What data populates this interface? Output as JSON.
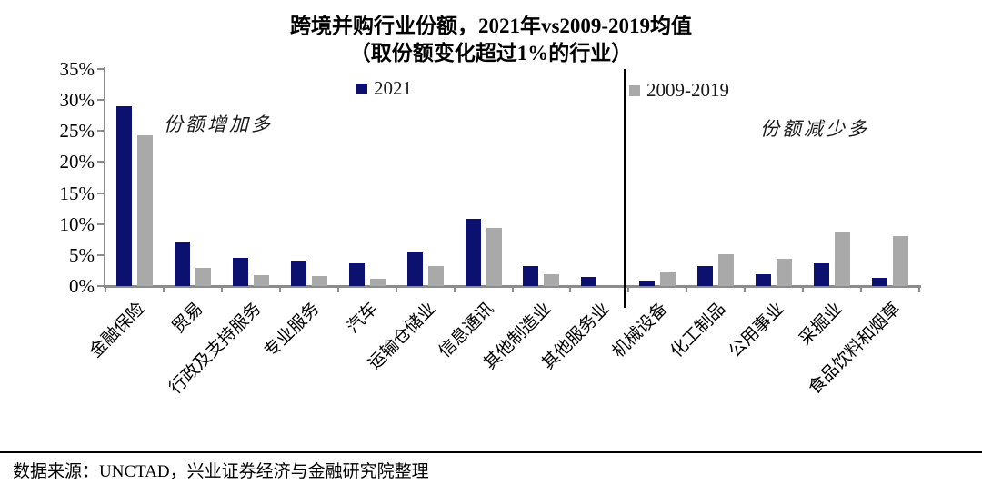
{
  "title": {
    "line1": "跨境并购行业份额，2021年vs2009-2019均值",
    "line2": "（取份额变化超过1%的行业）"
  },
  "legend": {
    "s2021": {
      "label": "2021",
      "color": "#0c1170"
    },
    "s2009": {
      "label": "2009-2019",
      "color": "#a9a9a9"
    }
  },
  "annotations": {
    "left": "份额增加多",
    "right": "份额减少多"
  },
  "source": "数据来源：UNCTAD，兴业证券经济与金融研究院整理",
  "chart_data": {
    "type": "bar",
    "title": "跨境并购行业份额，2021年vs2009-2019均值（取份额变化超过1%的行业）",
    "categories": [
      "金融保险",
      "贸易",
      "行政及支持服务",
      "专业服务",
      "汽车",
      "运输仓储业",
      "信息通讯",
      "其他制造业",
      "其他服务业",
      "机械设备",
      "化工制品",
      "公用事业",
      "采掘业",
      "食品饮料和烟草"
    ],
    "series": [
      {
        "name": "2021",
        "color": "#0c1170",
        "values": [
          29.0,
          7.0,
          4.5,
          4.1,
          3.7,
          5.4,
          10.9,
          3.2,
          1.4,
          0.9,
          3.2,
          1.9,
          3.6,
          1.3
        ]
      },
      {
        "name": "2009-2019",
        "color": "#a9a9a9",
        "values": [
          24.3,
          2.9,
          1.7,
          1.6,
          1.2,
          3.2,
          9.3,
          1.9,
          0.0,
          2.4,
          5.1,
          4.4,
          8.7,
          8.1
        ]
      }
    ],
    "ylim": [
      0,
      35
    ],
    "yticks": [
      {
        "label": "35%",
        "v": 35
      },
      {
        "label": "30%",
        "v": 30
      },
      {
        "label": "25%",
        "v": 25
      },
      {
        "label": "20%",
        "v": 20
      },
      {
        "label": "15%",
        "v": 15
      },
      {
        "label": "10%",
        "v": 10
      },
      {
        "label": "5%",
        "v": 5
      },
      {
        "label": "0%",
        "v": 0
      }
    ],
    "grid": false,
    "legend_position": "top",
    "divider_after_category_index": 8,
    "annotation_left_region": "份额增加多",
    "annotation_right_region": "份额减少多"
  }
}
